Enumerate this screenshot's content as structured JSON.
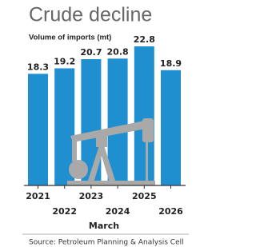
{
  "chart_data": {
    "type": "bar",
    "title": "Crude decline",
    "subtitle": "Volume of imports (mt)",
    "categories": [
      "2021",
      "2022",
      "2023",
      "2024",
      "2025",
      "2026"
    ],
    "values": [
      18.3,
      19.2,
      20.7,
      20.8,
      22.8,
      18.9
    ],
    "color": "#1f8fd0",
    "xlabel": "March",
    "source": "Source: Petroleum Planning & Analysis Cell"
  }
}
